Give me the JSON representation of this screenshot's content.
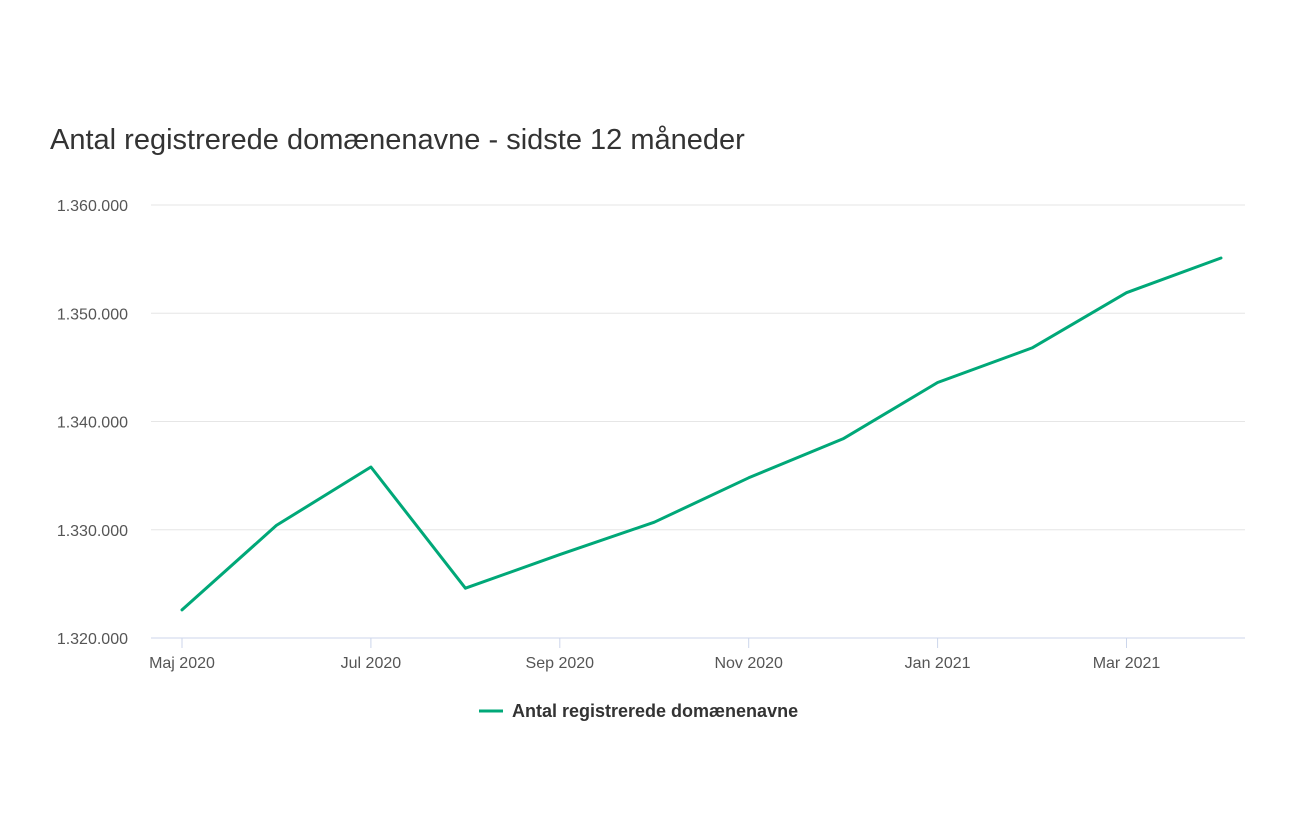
{
  "chart_data": {
    "type": "line",
    "title": "Antal registrerede domænenavne - sidste 12 måneder",
    "x": [
      "2020-05",
      "2020-06",
      "2020-07",
      "2020-08",
      "2020-09",
      "2020-10",
      "2020-11",
      "2020-12",
      "2021-01",
      "2021-02",
      "2021-03",
      "2021-04"
    ],
    "x_tick_labels": [
      "Maj 2020",
      "Jul 2020",
      "Sep 2020",
      "Nov 2020",
      "Jan 2021",
      "Mar 2021"
    ],
    "y_tick_labels": [
      "1.320.000",
      "1.330.000",
      "1.340.000",
      "1.350.000",
      "1.360.000"
    ],
    "ylim": [
      1320000,
      1360000
    ],
    "grid": true,
    "legend_position": "bottom-center",
    "series": [
      {
        "name": "Antal registrerede domænenavne",
        "color": "#00a878",
        "values": [
          1322600,
          1330400,
          1335800,
          1324600,
          1327700,
          1330700,
          1334800,
          1338400,
          1343600,
          1346800,
          1351900,
          1355100
        ]
      }
    ]
  }
}
